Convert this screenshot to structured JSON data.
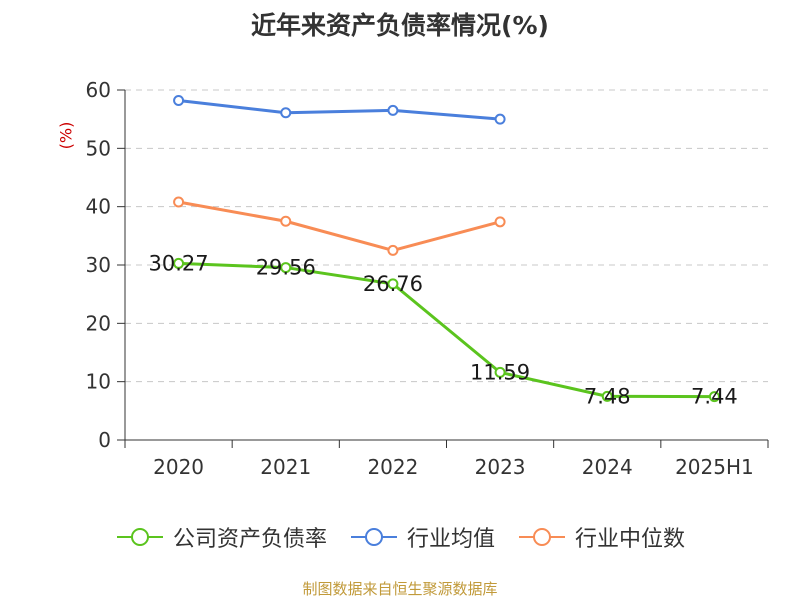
{
  "chart_data": {
    "type": "line",
    "title": "近年来资产负债率情况(%)",
    "ylabel": "(%)",
    "xlabel": "",
    "categories": [
      "2020",
      "2021",
      "2022",
      "2023",
      "2024",
      "2025H1"
    ],
    "ylim": [
      0,
      60
    ],
    "yticks": [
      0,
      10,
      20,
      30,
      40,
      50,
      60
    ],
    "grid": true,
    "legend_position": "bottom",
    "series": [
      {
        "name": "公司资产负债率",
        "color": "#5bc41e",
        "values": [
          30.27,
          29.56,
          26.76,
          11.59,
          7.48,
          7.44
        ],
        "labels": [
          "30.27",
          "29.56",
          "26.76",
          "11.59",
          "7.48",
          "7.44"
        ]
      },
      {
        "name": "行业均值",
        "color": "#4a7fdc",
        "values": [
          58.2,
          56.1,
          56.5,
          55.0,
          null,
          null
        ]
      },
      {
        "name": "行业中位数",
        "color": "#f88c55",
        "values": [
          40.8,
          37.5,
          32.5,
          37.4,
          null,
          null
        ]
      }
    ]
  },
  "source": "制图数据来自恒生聚源数据库"
}
